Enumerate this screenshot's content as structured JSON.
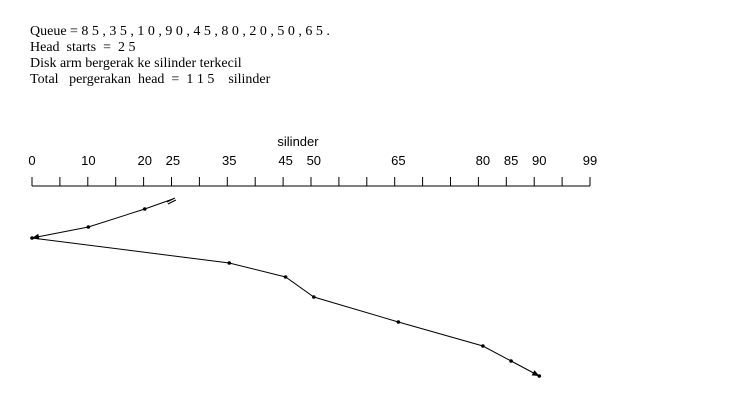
{
  "header": {
    "queue_line": "Queue = 8 5 , 3 5 , 1 0 , 9 0 , 4 5 , 8 0 , 2 0 , 5 0 , 6 5 .",
    "head_line": "Head  starts  =  2 5",
    "direction_line": "Disk arm bergerak ke silinder terkecil",
    "total_line": "Total   pergerakan  head  =  1 1 5    silinder"
  },
  "diagram": {
    "axis_title": "silinder",
    "axis_min": 0,
    "axis_max": 99,
    "tick_count": 20,
    "tick_labels": [
      {
        "label": "0",
        "value": 0
      },
      {
        "label": "10",
        "value": 10
      },
      {
        "label": "20",
        "value": 20
      },
      {
        "label": "25",
        "value": 25
      },
      {
        "label": "35",
        "value": 35
      },
      {
        "label": "45",
        "value": 45
      },
      {
        "label": "50",
        "value": 50
      },
      {
        "label": "65",
        "value": 65
      },
      {
        "label": "80",
        "value": 80
      },
      {
        "label": "85",
        "value": 85
      },
      {
        "label": "90",
        "value": 90
      },
      {
        "label": "99",
        "value": 99
      }
    ],
    "path": [
      25,
      20,
      10,
      0,
      35,
      45,
      50,
      65,
      80,
      85,
      90
    ],
    "line_color": "#000000"
  }
}
